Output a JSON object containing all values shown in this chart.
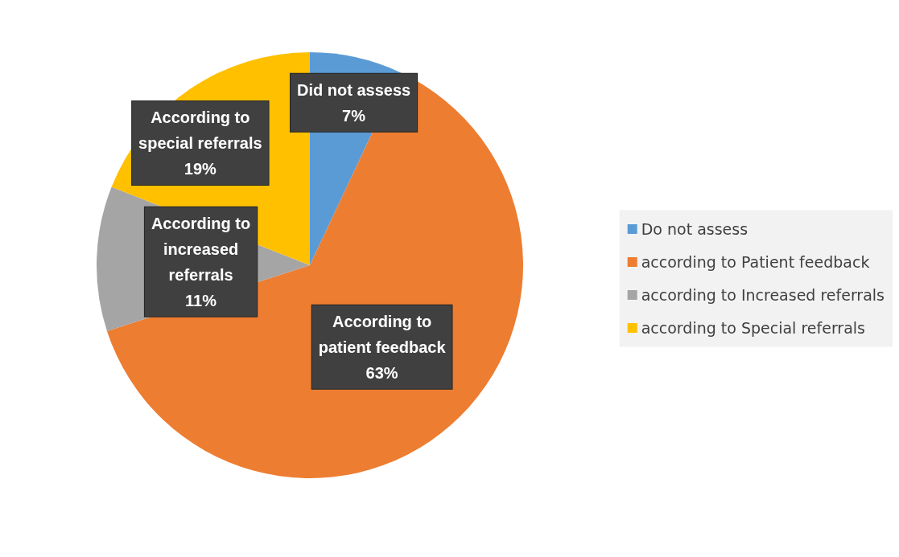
{
  "chart_data": {
    "type": "pie",
    "categories": [
      "Do not assess",
      "according to Patient feedback",
      "according to Increased referrals",
      "according to Special referrals"
    ],
    "values": [
      7,
      63,
      11,
      19
    ],
    "colors": [
      "#5b9bd5",
      "#ed7d31",
      "#a5a5a5",
      "#ffc000"
    ],
    "value_labels": [
      "Did not assess\n7%",
      "According to\npatient feedback\n63%",
      "According to\nincreased\nreferrals\n11%",
      "According to\nspecial referrals\n19%"
    ],
    "legend": "right"
  }
}
